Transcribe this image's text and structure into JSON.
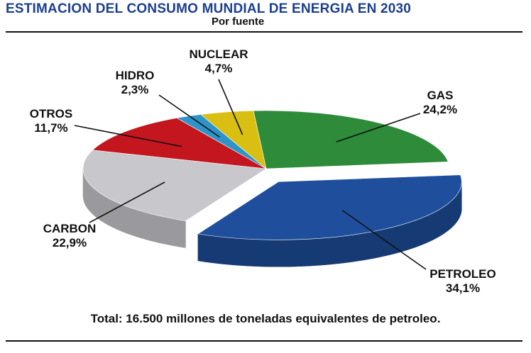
{
  "header": {
    "title": "ESTIMACION DEL CONSUMO MUNDIAL DE ENERGIA EN 2030",
    "subtitle": "Por fuente"
  },
  "footer": {
    "total": "Total: 16.500 millones de toneladas equivalentes de petroleo."
  },
  "chart_data": {
    "type": "pie",
    "title": "ESTIMACION DEL CONSUMO MUNDIAL DE ENERGIA EN 2030",
    "subtitle": "Por fuente",
    "unit": "%",
    "exploded": "PETROLEO",
    "style": "3d",
    "slices": [
      {
        "label": "GAS",
        "value": 24.2,
        "value_label": "24,2%",
        "color": "#2e8b3a",
        "side_color": "#1f6428"
      },
      {
        "label": "PETROLEO",
        "value": 34.1,
        "value_label": "34,1%",
        "color": "#1f4f9c",
        "side_color": "#163a73"
      },
      {
        "label": "CARBON",
        "value": 22.9,
        "value_label": "22,9%",
        "color": "#c8c8cc",
        "side_color": "#9a9a9e"
      },
      {
        "label": "OTROS",
        "value": 11.7,
        "value_label": "11,7%",
        "color": "#c3161f",
        "side_color": "#8a0f16"
      },
      {
        "label": "HIDRO",
        "value": 2.3,
        "value_label": "2,3%",
        "color": "#2d93c8",
        "side_color": "#1f6d95"
      },
      {
        "label": "NUCLEAR",
        "value": 4.7,
        "value_label": "4,7%",
        "color": "#d8bf12",
        "side_color": "#a08d0c"
      }
    ]
  }
}
